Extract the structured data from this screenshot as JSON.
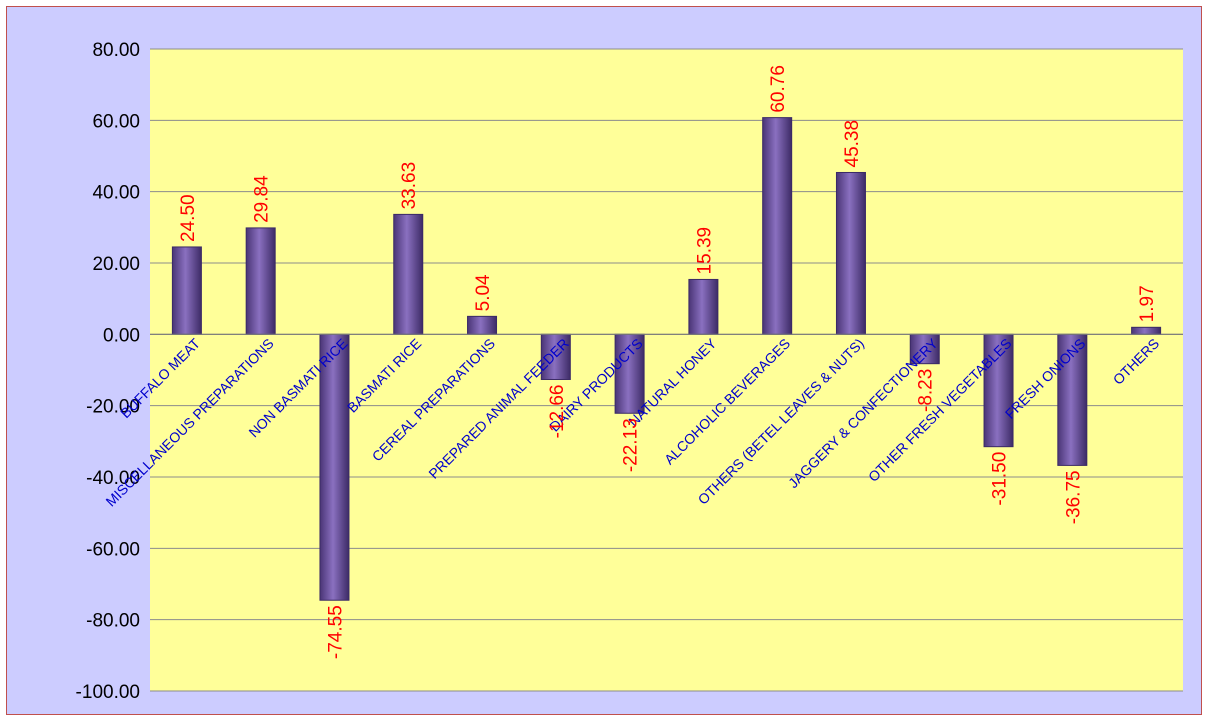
{
  "chart_data": {
    "type": "bar",
    "title": "",
    "xlabel": "",
    "ylabel": "",
    "categories": [
      "BUFFALO MEAT",
      "MISCELLANEOUS PREPARATIONS",
      "NON BASMATI RICE",
      "BASMATI RICE",
      "CEREAL PREPARATIONS",
      "PREPARED ANIMAL FEEDER",
      "DAIRY PRODUCTS",
      "NATURAL HONEY",
      "ALCOHOLIC BEVERAGES",
      "OTHERS (BETEL LEAVES & NUTS)",
      "JAGGERY & CONFECTIONERY",
      "OTHER FRESH VEGETABLES",
      "FRESH ONIONS",
      "OTHERS"
    ],
    "values": [
      24.5,
      29.84,
      -74.55,
      33.63,
      5.04,
      -12.66,
      -22.13,
      15.39,
      60.76,
      45.38,
      -8.23,
      -31.5,
      -36.75,
      1.97
    ],
    "data_labels": [
      "24.50",
      "29.84",
      "-74.55",
      "33.63",
      "5.04",
      "-12.66",
      "-22.13",
      "15.39",
      "60.76",
      "45.38",
      "-8.23",
      "-31.50",
      "-36.75",
      "1.97"
    ],
    "ylim": [
      -100,
      80
    ],
    "yticks": [
      80,
      60,
      40,
      20,
      0,
      -20,
      -40,
      -60,
      -80,
      -100
    ],
    "ytick_labels": [
      "80.00",
      "60.00",
      "40.00",
      "20.00",
      "0.00",
      "-20.00",
      "-40.00",
      "-60.00",
      "-80.00",
      "-100.00"
    ],
    "grid": true,
    "legend": "none",
    "colors": {
      "frame_background": "#ccccff",
      "frame_border": "#c0504d",
      "plot_background": "#ffff99",
      "bar_fill": "#6b4f9e",
      "bar_edge": "#3b2a66",
      "gridline": "#8c8c8c",
      "category_label": "#0000cc",
      "data_label": "#ff0000"
    }
  }
}
